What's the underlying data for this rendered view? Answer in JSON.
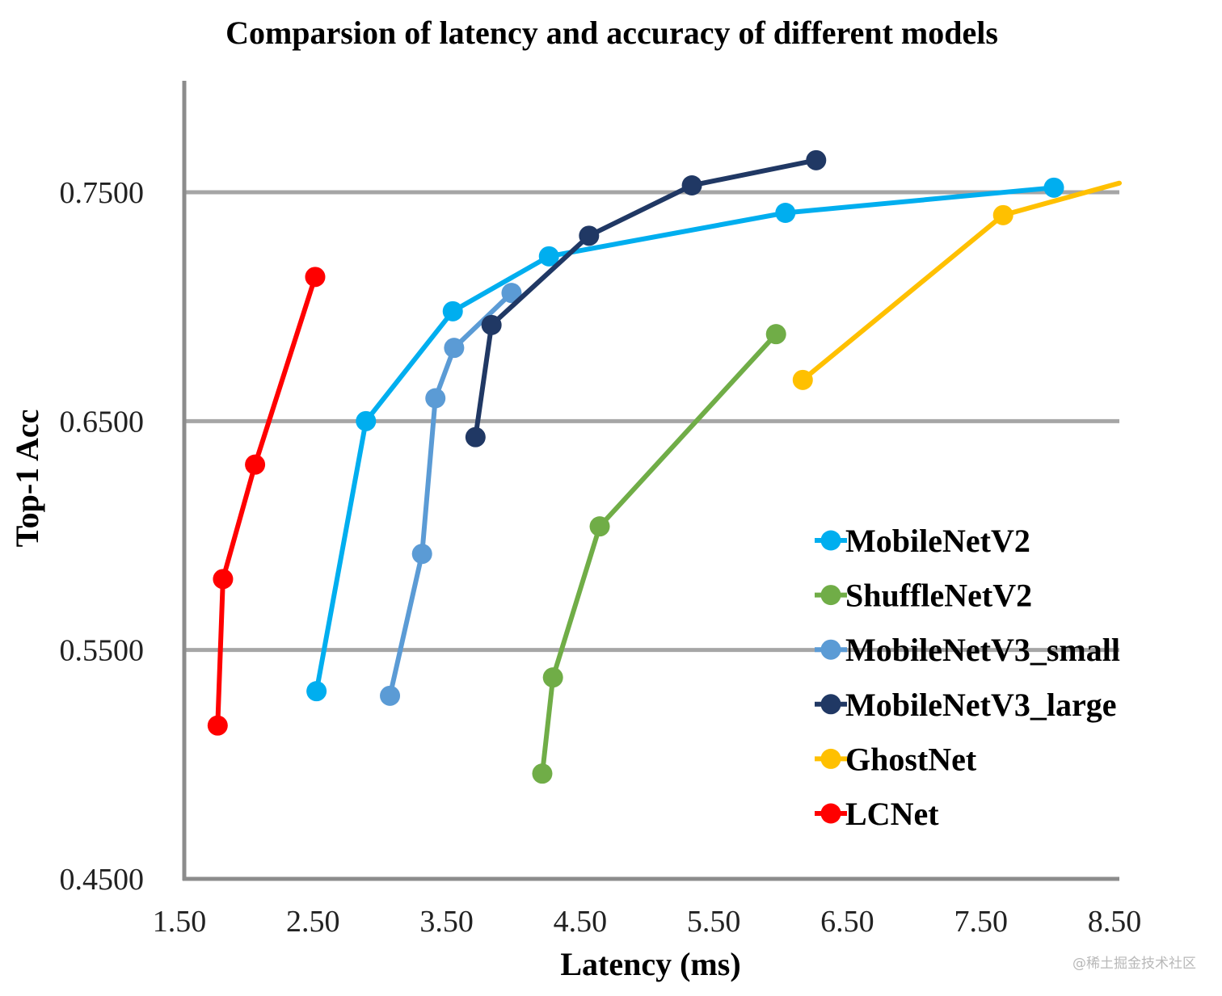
{
  "chart_data": {
    "type": "line",
    "title": "Comparsion of latency and accuracy of different models",
    "xlabel": "Latency (ms)",
    "ylabel": "Top-1 Acc",
    "xlim": [
      1.5,
      8.5
    ],
    "ylim": [
      0.45,
      0.8
    ],
    "x_ticks": [
      1.5,
      2.5,
      3.5,
      4.5,
      5.5,
      6.5,
      7.5,
      8.5
    ],
    "x_tick_labels": [
      "1.50",
      "2.50",
      "3.50",
      "4.50",
      "5.50",
      "6.50",
      "7.50",
      "8.50"
    ],
    "y_ticks": [
      0.45,
      0.55,
      0.65,
      0.75
    ],
    "y_tick_labels": [
      "0.4500",
      "0.5500",
      "0.6500",
      "0.7500"
    ],
    "grid": true,
    "legend_position": "bottom-right",
    "series": [
      {
        "name": "MobileNetV2",
        "color": "#00AEEF",
        "x": [
          2.49,
          2.86,
          3.51,
          4.23,
          6.0,
          8.01
        ],
        "y": [
          0.532,
          0.65,
          0.698,
          0.722,
          0.741,
          0.752
        ]
      },
      {
        "name": "ShuffleNetV2",
        "color": "#70AD47",
        "x": [
          4.18,
          4.26,
          4.61,
          5.93
        ],
        "y": [
          0.496,
          0.538,
          0.604,
          0.688
        ]
      },
      {
        "name": "MobileNetV3_small",
        "color": "#5B9BD5",
        "x": [
          3.04,
          3.28,
          3.38,
          3.52,
          3.95
        ],
        "y": [
          0.53,
          0.592,
          0.66,
          0.682,
          0.706
        ]
      },
      {
        "name": "MobileNetV3_large",
        "color": "#203864",
        "x": [
          3.68,
          3.8,
          4.53,
          5.3,
          6.23
        ],
        "y": [
          0.643,
          0.692,
          0.731,
          0.753,
          0.764
        ]
      },
      {
        "name": "GhostNet",
        "color": "#FFC000",
        "x": [
          6.13,
          7.63,
          8.5
        ],
        "y": [
          0.668,
          0.74,
          0.754
        ],
        "markers": [
          true,
          true,
          false
        ]
      },
      {
        "name": "LCNet",
        "color": "#FF0000",
        "x": [
          1.75,
          1.79,
          2.03,
          2.48
        ],
        "y": [
          0.517,
          0.581,
          0.631,
          0.713
        ]
      }
    ]
  },
  "watermark": "@稀土掘金技术社区"
}
